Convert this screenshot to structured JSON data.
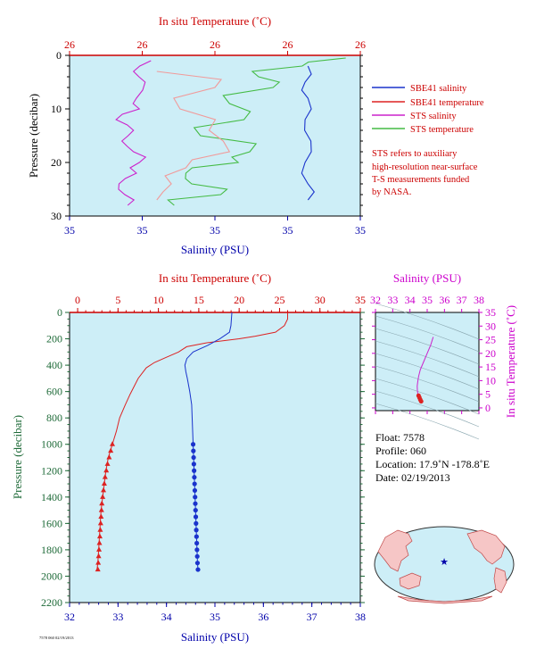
{
  "colors": {
    "panel_bg": "#cdeef7",
    "sbe_salinity": "#1a33cc",
    "sbe_temperature": "#dd2222",
    "sts_salinity": "#cc22cc",
    "sts_temperature": "#44bb44",
    "sts_temp_light": "#f19a9a",
    "axis_red": "#cc0000",
    "axis_blue": "#0000aa",
    "axis_green": "#1e6a38",
    "axis_magenta": "#cc00cc"
  },
  "top_panel": {
    "temp_axis_title": "In situ Temperature (˚C)",
    "temp_ticks": [
      "26",
      "26",
      "26",
      "26",
      "26"
    ],
    "sal_axis_title": "Salinity (PSU)",
    "sal_ticks": [
      "35",
      "35",
      "35",
      "35",
      "35"
    ],
    "pressure_axis_title": "Pressure (decibar)",
    "pressure_ticks": [
      "0",
      "10",
      "20",
      "30"
    ]
  },
  "legend": [
    {
      "label": "SBE41 salinity",
      "color": "#1a33cc"
    },
    {
      "label": "SBE41 temperature",
      "color": "#dd2222"
    },
    {
      "label": "STS salinity",
      "color": "#cc22cc"
    },
    {
      "label": "STS temperature",
      "color": "#44bb44"
    }
  ],
  "note_lines": [
    "STS refers to auxiliary",
    "high-resolution near-surface",
    "T-S measurements funded",
    "by NASA."
  ],
  "main_panel": {
    "temp_axis_title": "In situ Temperature (˚C)",
    "sal_axis_title": "Salinity (PSU)",
    "pressure_axis_title": "Pressure (decibar)"
  },
  "ts_panel": {
    "sal_axis_title": "Salinity (PSU)",
    "temp_axis_title": "In situ Temperature (˚C)"
  },
  "float_info": {
    "float": "Float:  7578",
    "profile": "Profile:  060",
    "location": "Location:  17.9˚N  -178.8˚E",
    "date": "Date:  02/19/2013"
  },
  "footer_code": "7578 060 02/19/2013",
  "chart_data": [
    {
      "type": "line",
      "name": "near-surface",
      "x_temperature": {
        "label": "In situ Temperature (˚C)",
        "ticks": [
          "26",
          "26",
          "26",
          "26",
          "26"
        ]
      },
      "x_salinity": {
        "label": "Salinity (PSU)",
        "ticks": [
          "35",
          "35",
          "35",
          "35",
          "35"
        ]
      },
      "y": {
        "label": "Pressure (decibar)",
        "lim": [
          30,
          0
        ],
        "ticks": [
          0,
          10,
          20,
          30
        ]
      },
      "series": [
        {
          "name": "SBE41 salinity",
          "pressure": [
            2,
            5,
            8,
            12,
            16,
            20,
            24,
            27
          ],
          "position_fraction": [
            0.82,
            0.81,
            0.82,
            0.81,
            0.83,
            0.81,
            0.82,
            0.82
          ]
        },
        {
          "name": "STS salinity",
          "pressure": [
            1,
            3,
            5,
            8,
            10,
            12,
            14,
            16,
            18,
            20,
            22,
            24,
            26,
            28
          ],
          "position_fraction": [
            0.28,
            0.22,
            0.26,
            0.23,
            0.24,
            0.16,
            0.22,
            0.18,
            0.22,
            0.24,
            0.23,
            0.17,
            0.19,
            0.2
          ]
        },
        {
          "name": "STS temperature",
          "pressure": [
            0.5,
            2,
            4,
            6,
            9,
            12,
            15,
            18,
            20,
            22,
            24,
            26,
            28
          ],
          "position_fraction": [
            0.95,
            0.8,
            0.65,
            0.7,
            0.55,
            0.6,
            0.45,
            0.62,
            0.58,
            0.4,
            0.42,
            0.52,
            0.36
          ]
        },
        {
          "name": "SBE41 temperature",
          "pressure": [
            3,
            6,
            10,
            14,
            18,
            21,
            24,
            27
          ],
          "position_fraction": [
            0.3,
            0.5,
            0.38,
            0.48,
            0.55,
            0.4,
            0.35,
            0.3
          ]
        }
      ]
    },
    {
      "type": "line",
      "name": "full-profile",
      "x_temperature": {
        "label": "In situ Temperature (˚C)",
        "lim": [
          -1,
          35
        ],
        "ticks": [
          0,
          5,
          10,
          15,
          20,
          25,
          30,
          35
        ]
      },
      "x_salinity": {
        "label": "Salinity (PSU)",
        "lim": [
          32,
          38
        ],
        "ticks": [
          32,
          33,
          34,
          35,
          36,
          37,
          38
        ]
      },
      "y": {
        "label": "Pressure (decibar)",
        "lim": [
          2200,
          0
        ],
        "ticks": [
          0,
          200,
          400,
          600,
          800,
          1000,
          1200,
          1400,
          1600,
          1800,
          2000,
          2200
        ]
      },
      "series": [
        {
          "name": "SBE41 temperature",
          "pressure": [
            0,
            50,
            100,
            150,
            180,
            200,
            230,
            260,
            300,
            340,
            380,
            420,
            460,
            500,
            560,
            620,
            700,
            800,
            900,
            1000,
            1100,
            1200,
            1300,
            1400,
            1500,
            1600,
            1700,
            1800,
            1900,
            1950
          ],
          "temperature": [
            26.0,
            26.0,
            25.6,
            24.5,
            22.0,
            20.0,
            16.0,
            13.5,
            12.5,
            11.0,
            9.5,
            8.5,
            8.0,
            7.5,
            7.0,
            6.5,
            5.9,
            5.2,
            4.8,
            4.3,
            3.8,
            3.5,
            3.3,
            3.1,
            2.9,
            2.8,
            2.7,
            2.6,
            2.5,
            2.4
          ]
        },
        {
          "name": "SBE41 salinity",
          "pressure": [
            0,
            100,
            150,
            200,
            250,
            300,
            350,
            400,
            450,
            500,
            600,
            700,
            800,
            900,
            1000,
            1100,
            1200,
            1300,
            1400,
            1500,
            1600,
            1700,
            1800,
            1900,
            1950
          ],
          "salinity": [
            35.35,
            35.33,
            35.3,
            35.1,
            34.85,
            34.55,
            34.42,
            34.38,
            34.4,
            34.43,
            34.48,
            34.52,
            34.53,
            34.54,
            34.55,
            34.56,
            34.57,
            34.58,
            34.59,
            34.6,
            34.61,
            34.62,
            34.63,
            34.64,
            34.65
          ]
        },
        {
          "name": "temperature bottle markers",
          "pressure": [
            1000,
            1050,
            1100,
            1150,
            1200,
            1250,
            1300,
            1350,
            1400,
            1450,
            1500,
            1550,
            1600,
            1650,
            1700,
            1750,
            1800,
            1850,
            1900,
            1950
          ],
          "temperature": [
            4.3,
            4.1,
            3.9,
            3.7,
            3.55,
            3.4,
            3.3,
            3.2,
            3.1,
            3.0,
            2.95,
            2.9,
            2.85,
            2.8,
            2.75,
            2.7,
            2.65,
            2.6,
            2.55,
            2.5
          ]
        },
        {
          "name": "salinity bottle markers",
          "pressure": [
            1000,
            1050,
            1100,
            1150,
            1200,
            1250,
            1300,
            1350,
            1400,
            1450,
            1500,
            1550,
            1600,
            1650,
            1700,
            1750,
            1800,
            1850,
            1900,
            1950
          ],
          "salinity": [
            34.55,
            34.555,
            34.56,
            34.565,
            34.57,
            34.575,
            34.58,
            34.585,
            34.59,
            34.595,
            34.6,
            34.605,
            34.61,
            34.615,
            34.62,
            34.625,
            34.63,
            34.635,
            34.64,
            34.65
          ]
        }
      ]
    },
    {
      "type": "scatter",
      "name": "T-S diagram",
      "x": {
        "label": "Salinity (PSU)",
        "lim": [
          32,
          38
        ],
        "ticks": [
          32,
          33,
          34,
          35,
          36,
          37,
          38
        ]
      },
      "y": {
        "label": "In situ Temperature (˚C)",
        "lim": [
          -1,
          35
        ],
        "ticks": [
          0,
          5,
          10,
          15,
          20,
          25,
          30,
          35
        ]
      },
      "series": [
        {
          "name": "profile",
          "salinity": [
            35.35,
            35.2,
            35.0,
            34.8,
            34.6,
            34.5,
            34.45,
            34.42,
            34.43,
            34.45,
            34.5,
            34.55,
            34.6,
            34.65
          ],
          "temperature": [
            26.0,
            23.0,
            20.0,
            17.0,
            14.0,
            11.5,
            9.5,
            8.0,
            6.5,
            5.5,
            4.5,
            3.8,
            3.0,
            2.4
          ]
        }
      ]
    }
  ]
}
